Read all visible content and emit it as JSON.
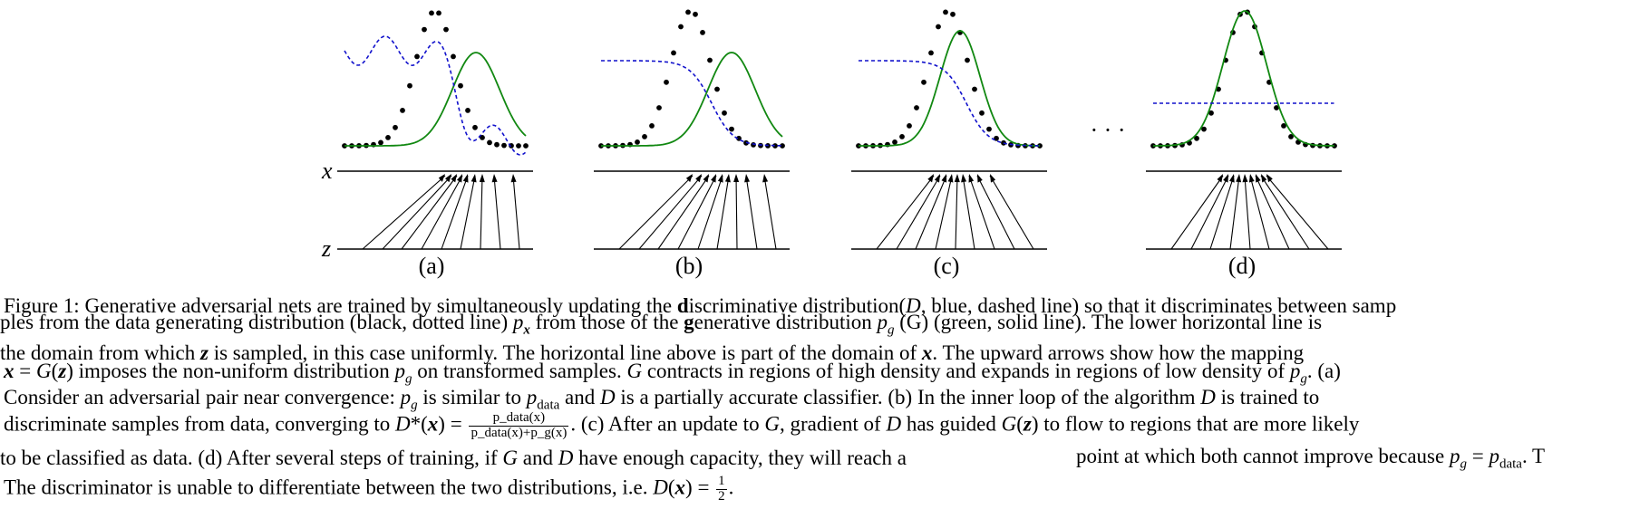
{
  "figure": {
    "panel_labels": [
      "(a)",
      "(b)",
      "(c)",
      "(d)"
    ],
    "axis_labels": {
      "x": "x",
      "z": "z"
    },
    "ellipsis": "· · ·",
    "colors": {
      "data_distribution": "#000000",
      "generative_distribution": "#118811",
      "discriminator": "#1111cc",
      "axes": "#000000"
    }
  },
  "caption": {
    "line1": {
      "a": "Figure 1:",
      "b": "Generative adversarial nets are trained by simultaneously updating the ",
      "c": "d",
      "d": "iscriminative distribution",
      "e": "(",
      "f": "D",
      "g": ", blue, dashed line) so that it discriminates between samp"
    },
    "line2": {
      "a": "ples from the data generating distribution (black, dotted line) ",
      "b": "p",
      "c": "x",
      "d": " from those of the ",
      "e": "g",
      "f": "enerative distribution ",
      "g": "p",
      "h": "g",
      "i": " (G) (green, solid line). The lower horizontal line is"
    },
    "line3": {
      "a": "the domain from which ",
      "b": "z",
      "c": " is sampled, in this case uniformly. The horizontal line above is part of the domain of ",
      "d": "x",
      "e": ".  The upward arrows show how the mapping"
    },
    "line4": {
      "a": "x",
      "b": " = ",
      "c": "G",
      "d": "(",
      "e": "z",
      "f": ")",
      "g": " imposes the non-uniform distribution ",
      "h": "p",
      "i": "g",
      "j": " on transformed samples. ",
      "k": "G",
      "l": " contracts in regions of high density and expands in regions of low density of ",
      "m": "p",
      "n": "g",
      "o": ". (a)"
    },
    "line5": {
      "a": "Consider an adversarial pair near convergence: ",
      "b": "p",
      "c": "g",
      "d": " is similar to ",
      "e": "p",
      "f": "data",
      "g": " and ",
      "h": "D",
      "i": " is a partially accurate classifier. (b) In the inner loop of the algorithm ",
      "j": "D",
      "k": " is trained to"
    },
    "line6": {
      "a": "discriminate samples from data, converging to ",
      "b": "D",
      "c": "*(",
      "d": "x",
      "e": ") = ",
      "num": "p_data(x)",
      "den": "p_data(x)+p_g(x)",
      "f": ". (c) After an update to ",
      "g": "G",
      "h": ", gradient of ",
      "i": "D",
      "j": " has guided ",
      "k": "G",
      "l": "(",
      "m": "z",
      "n": ")",
      "o": " to flow to regions that are more likely"
    },
    "line7": {
      "a": "to be classified as data. (d) After several steps of training, if ",
      "b": "G",
      "c": " and ",
      "d": "D",
      "e": " have enough capacity, they will reach a",
      "f": "point at which both cannot improve because ",
      "g": "p",
      "h": "g",
      "i": " = ",
      "j": "p",
      "k": "data",
      "l": ". T"
    },
    "line8": {
      "a": "The discriminator is unable to differentiate between ",
      "b": "the two distributions, i.e. ",
      "c": "D",
      "d": "(",
      "e": "x",
      "f": ") = ",
      "num": "1",
      "den": "2",
      "g": "."
    }
  }
}
